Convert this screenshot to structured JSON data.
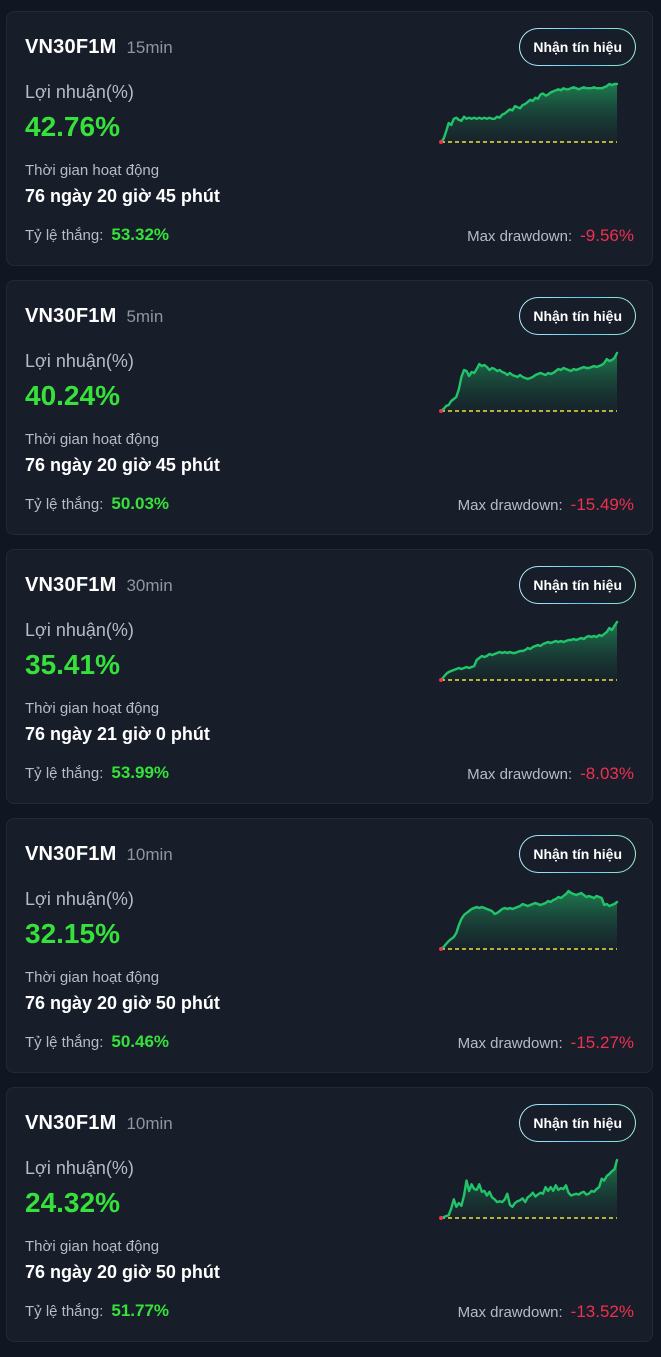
{
  "labels": {
    "signal_button": "Nhận tín hiệu",
    "profit": "Lợi nhuận(%)",
    "active_time": "Thời gian hoạt động",
    "win_rate": "Tỷ lệ thắng:",
    "max_drawdown": "Max drawdown:"
  },
  "colors": {
    "background": "#111722",
    "card": "#171d29",
    "positive": "#35e13a",
    "negative": "#f0304f",
    "chart_line": "#21c46b",
    "baseline": "#e7e63a"
  },
  "strategies": [
    {
      "symbol": "VN30F1M",
      "timeframe": "15min",
      "profit": "42.76%",
      "active_time": "76 ngày 20 giờ 45 phút",
      "win_rate": "53.32%",
      "max_drawdown": "-9.56%",
      "sparkline": [
        0,
        3,
        10,
        18,
        16,
        22,
        23,
        21,
        20,
        24,
        22,
        23,
        22,
        23,
        22,
        23,
        22,
        23,
        22,
        23,
        22,
        22,
        24,
        23,
        26,
        27,
        29,
        31,
        30,
        34,
        33,
        32,
        35,
        36,
        38,
        40,
        39,
        42,
        41,
        45,
        46,
        44,
        45,
        47,
        48,
        49,
        50,
        49,
        51,
        50,
        50,
        51,
        52,
        51,
        50,
        51,
        52,
        51,
        51,
        51,
        52,
        51,
        51,
        51,
        52,
        53,
        55,
        54,
        55,
        55
      ]
    },
    {
      "symbol": "VN30F1M",
      "timeframe": "5min",
      "profit": "40.24%",
      "active_time": "76 ngày 20 giờ 45 phút",
      "win_rate": "50.03%",
      "max_drawdown": "-15.49%",
      "sparkline": [
        0,
        2,
        5,
        6,
        10,
        12,
        14,
        22,
        34,
        41,
        40,
        35,
        39,
        38,
        42,
        47,
        45,
        46,
        44,
        41,
        43,
        42,
        40,
        41,
        39,
        38,
        36,
        38,
        36,
        35,
        34,
        36,
        34,
        33,
        32,
        33,
        34,
        36,
        37,
        38,
        37,
        36,
        38,
        37,
        38,
        40,
        42,
        41,
        43,
        42,
        41,
        40,
        42,
        41,
        42,
        43,
        44,
        43,
        43,
        44,
        45,
        44,
        45,
        46,
        48,
        52,
        50,
        51,
        53,
        58
      ]
    },
    {
      "symbol": "VN30F1M",
      "timeframe": "30min",
      "profit": "35.41%",
      "active_time": "76 ngày 21 giờ 0 phút",
      "win_rate": "53.99%",
      "max_drawdown": "-8.03%",
      "sparkline": [
        0,
        3,
        6,
        8,
        9,
        10,
        11,
        12,
        11,
        12,
        13,
        12,
        13,
        14,
        20,
        22,
        24,
        23,
        24,
        26,
        25,
        26,
        27,
        28,
        27,
        28,
        27,
        28,
        27,
        27,
        28,
        29,
        29,
        30,
        32,
        31,
        33,
        34,
        35,
        34,
        36,
        37,
        38,
        37,
        38,
        39,
        38,
        39,
        38,
        39,
        40,
        40,
        41,
        40,
        41,
        42,
        41,
        43,
        44,
        43,
        44,
        43,
        45,
        44,
        46,
        48,
        52,
        50,
        54,
        58
      ]
    },
    {
      "symbol": "VN30F1M",
      "timeframe": "10min",
      "profit": "32.15%",
      "active_time": "76 ngày 20 giờ 50 phút",
      "win_rate": "50.46%",
      "max_drawdown": "-15.27%",
      "sparkline": [
        0,
        2,
        5,
        8,
        10,
        12,
        16,
        24,
        30,
        34,
        36,
        38,
        40,
        41,
        42,
        41,
        42,
        41,
        40,
        39,
        38,
        35,
        36,
        38,
        40,
        41,
        40,
        41,
        40,
        41,
        42,
        43,
        45,
        44,
        43,
        44,
        45,
        46,
        45,
        44,
        45,
        46,
        48,
        47,
        49,
        50,
        52,
        51,
        53,
        55,
        58,
        56,
        55,
        54,
        55,
        56,
        54,
        52,
        53,
        52,
        51,
        53,
        52,
        51,
        44,
        45,
        43,
        44,
        45,
        47
      ]
    },
    {
      "symbol": "VN30F1M",
      "timeframe": "10min",
      "profit": "24.32%",
      "active_time": "76 ngày 20 giờ 50 phút",
      "win_rate": "51.77%",
      "max_drawdown": "-13.52%",
      "sparkline": [
        0,
        1,
        2,
        3,
        10,
        20,
        12,
        16,
        13,
        24,
        40,
        29,
        36,
        31,
        30,
        36,
        28,
        29,
        24,
        28,
        22,
        20,
        17,
        18,
        17,
        20,
        26,
        14,
        12,
        16,
        18,
        19,
        21,
        17,
        22,
        24,
        27,
        23,
        25,
        27,
        26,
        33,
        29,
        33,
        29,
        35,
        30,
        32,
        31,
        35,
        27,
        24,
        25,
        26,
        25,
        27,
        28,
        25,
        26,
        29,
        28,
        31,
        33,
        42,
        40,
        45,
        47,
        50,
        52,
        62
      ]
    }
  ]
}
